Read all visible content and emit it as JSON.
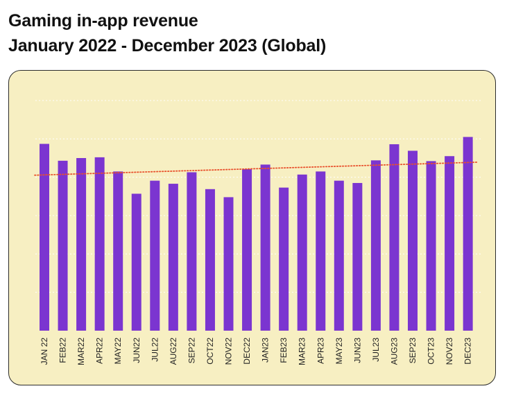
{
  "title": {
    "line1": "Gaming in-app revenue",
    "line2": "January 2022 - December 2023 (Global)"
  },
  "colors": {
    "background_panel": "#f7efc2",
    "bar": "#7b35d0",
    "trendline": "#e8512d",
    "gridline": "#ffffff"
  },
  "chart_data": {
    "type": "bar",
    "title": "Gaming in-app revenue",
    "subtitle": "January 2022 - December 2023 (Global)",
    "xlabel": "",
    "ylabel": "",
    "categories": [
      "JAN 22",
      "FEB22",
      "MAR22",
      "APR22",
      "MAY22",
      "JUN22",
      "JUL22",
      "AUG22",
      "SEP22",
      "OCT22",
      "NOV22",
      "DEC22",
      "JAN23",
      "FEB23",
      "MAR23",
      "APR23",
      "MAY23",
      "JUN23",
      "JUL23",
      "AUG23",
      "SEP23",
      "OCT23",
      "NOV23",
      "DEC23"
    ],
    "values": [
      4.87,
      4.43,
      4.5,
      4.52,
      4.15,
      3.57,
      3.91,
      3.83,
      4.13,
      3.69,
      3.48,
      4.21,
      4.33,
      3.73,
      4.07,
      4.15,
      3.91,
      3.85,
      4.44,
      4.86,
      4.69,
      4.42,
      4.55,
      5.05
    ],
    "ylim": [
      0,
      6
    ],
    "y_ticks_labeled": false,
    "grid": true,
    "legend": "none",
    "trendline": {
      "type": "linear",
      "style": "dotted"
    }
  }
}
